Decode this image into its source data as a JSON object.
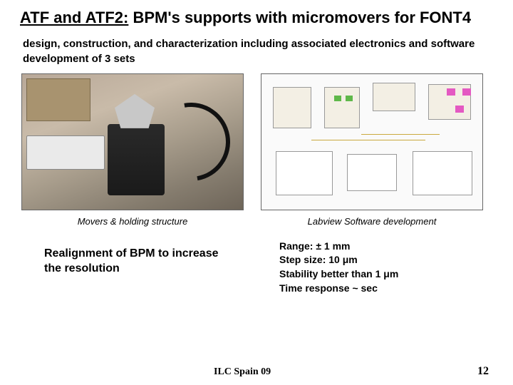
{
  "title_lead": "ATF and ATF2:",
  "title_rest": " BPM's supports with micromovers for FONT4",
  "subtitle": "design, construction, and characterization including associated electronics and software development of 3 sets",
  "figures": {
    "left_caption": "Movers & holding structure",
    "right_caption": "Labview Software development"
  },
  "realignment": "Realignment of BPM to increase the resolution",
  "specs": {
    "range": "Range: ± 1 mm",
    "step": "Step size: 10 μm",
    "stability": "Stability better than 1 μm",
    "time": "Time response ~ sec"
  },
  "footer": {
    "label": "ILC Spain 09",
    "page": "12"
  },
  "colors": {
    "background": "#ffffff",
    "text": "#000000",
    "border": "#666666",
    "labview_bg": "#fafafa",
    "labview_block": "#f3efe4",
    "labview_pink": "#e459c2",
    "labview_green": "#5fb84a",
    "labview_wire": "#caa93f"
  }
}
